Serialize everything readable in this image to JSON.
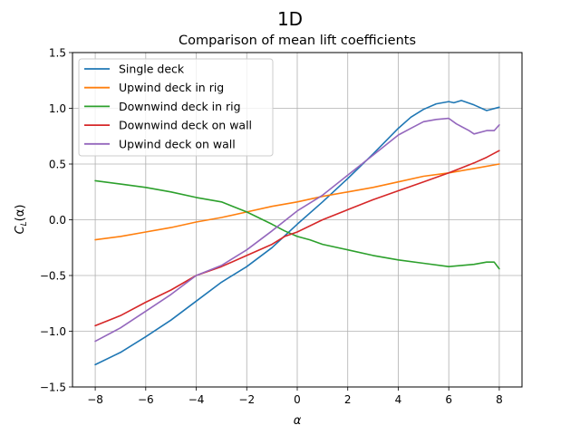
{
  "suptitle": "1D",
  "chart_data": {
    "type": "line",
    "title": "Comparison of mean lift coefficients",
    "xlabel": "α",
    "ylabel_main": "C",
    "ylabel_sub": "L",
    "ylabel_tail": "(α)",
    "xlim": [
      -8.9,
      8.9
    ],
    "ylim": [
      -1.5,
      1.5
    ],
    "xticks": [
      -8,
      -6,
      -4,
      -2,
      0,
      2,
      4,
      6,
      8
    ],
    "yticks": [
      -1.5,
      -1.0,
      -0.5,
      0.0,
      0.5,
      1.0,
      1.5
    ],
    "xtick_labels": [
      "−8",
      "−6",
      "−4",
      "−2",
      "0",
      "2",
      "4",
      "6",
      "8"
    ],
    "ytick_labels": [
      "−1.5",
      "−1.0",
      "−0.5",
      "0.0",
      "0.5",
      "1.0",
      "1.5"
    ],
    "grid": true,
    "legend_position": "top-left",
    "series": [
      {
        "name": "Single deck",
        "color": "#1f77b4",
        "x": [
          -8,
          -7,
          -6,
          -5,
          -4,
          -3,
          -2.5,
          -2,
          -1,
          0,
          1,
          2,
          3,
          4,
          4.5,
          5,
          5.5,
          6,
          6.2,
          6.5,
          7,
          7.5,
          8
        ],
        "y": [
          -1.3,
          -1.19,
          -1.05,
          -0.9,
          -0.73,
          -0.56,
          -0.49,
          -0.42,
          -0.25,
          -0.04,
          0.16,
          0.37,
          0.59,
          0.82,
          0.92,
          0.99,
          1.04,
          1.06,
          1.05,
          1.07,
          1.03,
          0.98,
          1.01
        ]
      },
      {
        "name": "Upwind deck in rig",
        "color": "#ff7f0e",
        "x": [
          -8,
          -7,
          -6,
          -5,
          -4,
          -3,
          -2,
          -1,
          0,
          1,
          2,
          3,
          4,
          5,
          6,
          7,
          8
        ],
        "y": [
          -0.18,
          -0.15,
          -0.11,
          -0.07,
          -0.02,
          0.02,
          0.07,
          0.12,
          0.16,
          0.21,
          0.25,
          0.29,
          0.34,
          0.39,
          0.42,
          0.46,
          0.5
        ]
      },
      {
        "name": "Downwind deck in rig",
        "color": "#2ca02c",
        "x": [
          -8,
          -7,
          -6,
          -5,
          -4,
          -3,
          -2,
          -1,
          -0.5,
          0,
          0.5,
          1,
          2,
          3,
          4,
          5,
          6,
          6.5,
          7,
          7.5,
          7.8,
          8
        ],
        "y": [
          0.35,
          0.32,
          0.29,
          0.25,
          0.2,
          0.16,
          0.07,
          -0.04,
          -0.1,
          -0.15,
          -0.18,
          -0.22,
          -0.27,
          -0.32,
          -0.36,
          -0.39,
          -0.42,
          -0.41,
          -0.4,
          -0.38,
          -0.38,
          -0.44
        ]
      },
      {
        "name": "Downwind deck on wall",
        "color": "#d62728",
        "x": [
          -8,
          -7,
          -6,
          -5,
          -4,
          -3,
          -2,
          -1,
          -0.5,
          0,
          1,
          2,
          3,
          4,
          5,
          6,
          7,
          7.5,
          8
        ],
        "y": [
          -0.95,
          -0.86,
          -0.74,
          -0.63,
          -0.5,
          -0.42,
          -0.32,
          -0.22,
          -0.15,
          -0.11,
          0.0,
          0.09,
          0.18,
          0.26,
          0.34,
          0.42,
          0.51,
          0.56,
          0.62
        ]
      },
      {
        "name": "Upwind deck on wall",
        "color": "#9467bd",
        "x": [
          -8,
          -7,
          -6,
          -5,
          -4,
          -3,
          -2,
          -1,
          0,
          1,
          2,
          3,
          4,
          4.5,
          5,
          5.5,
          6,
          6.3,
          6.8,
          7,
          7.5,
          7.8,
          8
        ],
        "y": [
          -1.09,
          -0.97,
          -0.82,
          -0.67,
          -0.5,
          -0.41,
          -0.27,
          -0.1,
          0.08,
          0.22,
          0.4,
          0.58,
          0.76,
          0.82,
          0.88,
          0.9,
          0.91,
          0.86,
          0.8,
          0.77,
          0.8,
          0.8,
          0.85
        ]
      }
    ]
  }
}
